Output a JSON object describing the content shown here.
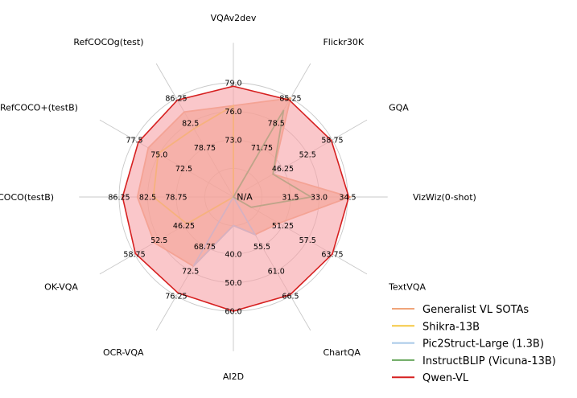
{
  "chart_data": {
    "type": "radar",
    "title": "",
    "axes": [
      {
        "name": "VQAv2dev",
        "ticks": [
          "73.0",
          "76.0",
          "79.0"
        ]
      },
      {
        "name": "Flickr30K",
        "ticks": [
          "71.75",
          "78.5",
          "85.25"
        ]
      },
      {
        "name": "GQA",
        "ticks": [
          "46.25",
          "52.5",
          "58.75"
        ]
      },
      {
        "name": "VizWiz(0-shot)",
        "ticks": [
          "31.5",
          "33.0",
          "34.5"
        ]
      },
      {
        "name": "TextVQA",
        "ticks": [
          "51.25",
          "57.5",
          "63.75"
        ]
      },
      {
        "name": "ChartQA",
        "ticks": [
          "55.5",
          "61.0",
          "66.5"
        ]
      },
      {
        "name": "AI2D",
        "ticks": [
          "40.0",
          "50.0",
          "60.0"
        ]
      },
      {
        "name": "OCR-VQA",
        "ticks": [
          "68.75",
          "72.5",
          "76.25"
        ]
      },
      {
        "name": "OK-VQA",
        "ticks": [
          "46.25",
          "52.5",
          "58.75"
        ]
      },
      {
        "name": "RefCOCO(testB)",
        "ticks": [
          "78.75",
          "82.5",
          "86.25"
        ]
      },
      {
        "name": "RefCOCO+(testB)",
        "ticks": [
          "72.5",
          "75.0",
          "77.5"
        ]
      },
      {
        "name": "RefCOCOg(test)",
        "ticks": [
          "78.75",
          "82.5",
          "86.25"
        ]
      }
    ],
    "center_label": "N/A",
    "rings": 4,
    "series": [
      {
        "name": "Generalist VL SOTAs",
        "color": "#f0a57a",
        "fill": true,
        "values": [
          0.8,
          1.0,
          0.4,
          1.02,
          0.46,
          0.38,
          0.25,
          0.7,
          0.8,
          0.84,
          0.86,
          0.86
        ]
      },
      {
        "name": "Shikra-13B",
        "color": "#f5c842",
        "fill": false,
        "values": [
          0.8,
          0,
          0,
          0,
          0,
          0,
          0,
          0,
          0.47,
          0.7,
          0.76,
          0.69
        ]
      },
      {
        "name": "Pic2Struct-Large (1.3B)",
        "color": "#a6c8e8",
        "fill": false,
        "values": [
          0,
          0,
          0,
          0,
          0,
          0.38,
          0.25,
          0.7,
          0,
          0,
          0,
          0
        ]
      },
      {
        "name": "InstructBLIP (Vicuna-13B)",
        "color": "#6aa85e",
        "fill": false,
        "values": [
          0,
          0.88,
          0.4,
          0.68,
          0.18,
          0,
          0,
          0,
          0,
          0,
          0,
          0
        ]
      },
      {
        "name": "Qwen-VL",
        "color": "#d62020",
        "fill": true,
        "fill_color": "#f7a1a6",
        "values": [
          0.97,
          0.98,
          0.99,
          1.01,
          1.0,
          0.99,
          1.0,
          0.97,
          0.99,
          0.97,
          0.96,
          0.98
        ]
      }
    ],
    "legend_position": "bottom-right",
    "grid": true
  }
}
